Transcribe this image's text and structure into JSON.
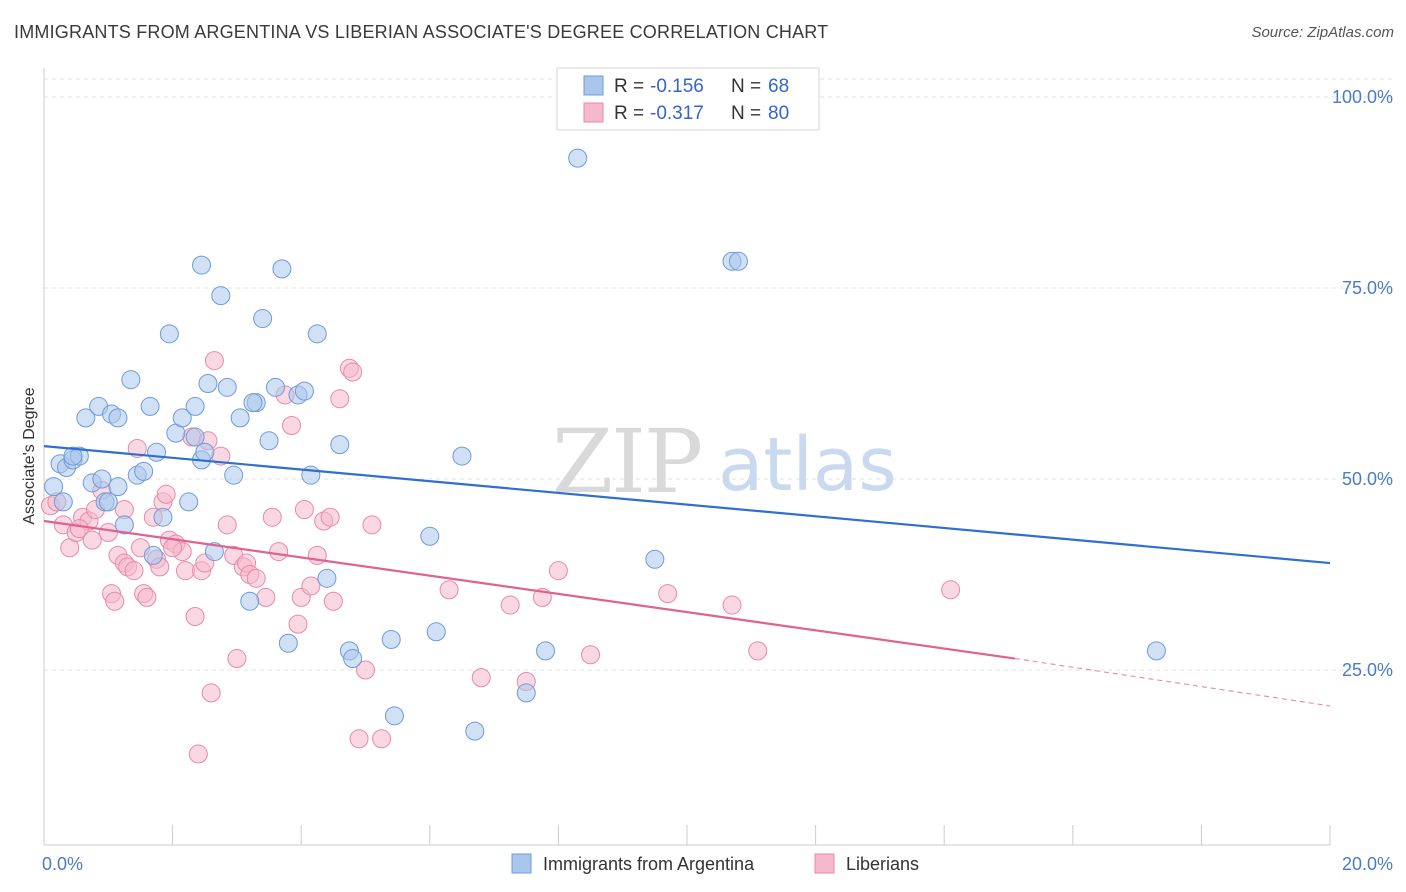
{
  "header": {
    "title": "IMMIGRANTS FROM ARGENTINA VS LIBERIAN ASSOCIATE'S DEGREE CORRELATION CHART",
    "source": "Source: ZipAtlas.com"
  },
  "colors": {
    "blue_fill": "#a9c6ec",
    "blue_stroke": "#6f9bd8",
    "blue_line": "#2f6fcf",
    "pink_fill": "#f6b8cc",
    "pink_stroke": "#e88aa8",
    "pink_line": "#e0628f",
    "tick_text": "#4a7cc4",
    "grid": "#e2e2e2"
  },
  "legend": {
    "blue": {
      "r_label": "R =",
      "r_value": "-0.156",
      "n_label": "N =",
      "n_value": "68"
    },
    "pink": {
      "r_label": "R =",
      "r_value": "-0.317",
      "n_label": "N =",
      "n_value": "80"
    }
  },
  "watermark": {
    "zip": "ZIP",
    "atlas": "atlas"
  },
  "chart_data": {
    "type": "scatter",
    "title": "IMMIGRANTS FROM ARGENTINA VS LIBERIAN ASSOCIATE'S DEGREE CORRELATION CHART",
    "xlabel": "",
    "ylabel": "Associate's Degree",
    "xlim": [
      0,
      20
    ],
    "ylim": [
      5,
      105
    ],
    "x_ticks": [
      {
        "value": 0,
        "label": "0.0%"
      },
      {
        "value": 20,
        "label": "20.0%"
      }
    ],
    "y_ticks": [
      {
        "value": 25,
        "label": "25.0%"
      },
      {
        "value": 50,
        "label": "50.0%"
      },
      {
        "value": 75,
        "label": "75.0%"
      },
      {
        "value": 100,
        "label": "100.0%"
      }
    ],
    "grid": true,
    "legend_position": "top-center",
    "series": [
      {
        "name": "Immigrants from Argentina",
        "color": "#a9c6ec",
        "trend": {
          "x0": 0,
          "y0": 54.3,
          "x1": 20,
          "y1": 39.0
        },
        "points": [
          [
            0.15,
            49
          ],
          [
            0.25,
            52
          ],
          [
            0.35,
            51.5
          ],
          [
            0.45,
            52.5
          ],
          [
            0.55,
            53
          ],
          [
            0.65,
            58
          ],
          [
            0.75,
            49.5
          ],
          [
            0.85,
            59.5
          ],
          [
            0.95,
            47
          ],
          [
            1.05,
            58.5
          ],
          [
            1.15,
            49
          ],
          [
            1.25,
            44
          ],
          [
            1.35,
            63
          ],
          [
            1.45,
            50.5
          ],
          [
            1.55,
            51
          ],
          [
            1.65,
            59.5
          ],
          [
            1.75,
            53.5
          ],
          [
            1.85,
            45
          ],
          [
            1.95,
            69
          ],
          [
            2.05,
            56
          ],
          [
            2.15,
            58
          ],
          [
            2.25,
            47
          ],
          [
            2.35,
            59.5
          ],
          [
            2.45,
            52.5
          ],
          [
            2.55,
            62.5
          ],
          [
            2.65,
            40.5
          ],
          [
            2.75,
            74
          ],
          [
            2.85,
            62
          ],
          [
            2.95,
            50.5
          ],
          [
            3.05,
            58
          ],
          [
            3.2,
            34
          ],
          [
            3.3,
            60
          ],
          [
            3.4,
            71
          ],
          [
            3.5,
            55
          ],
          [
            3.6,
            62
          ],
          [
            3.7,
            77.5
          ],
          [
            3.8,
            28.5
          ],
          [
            3.95,
            61
          ],
          [
            4.05,
            61.5
          ],
          [
            4.15,
            50.5
          ],
          [
            4.25,
            69
          ],
          [
            4.4,
            37
          ],
          [
            4.6,
            54.5
          ],
          [
            4.75,
            27.5
          ],
          [
            4.8,
            26.5
          ],
          [
            5.4,
            29
          ],
          [
            5.45,
            19
          ],
          [
            6.0,
            42.5
          ],
          [
            6.1,
            30
          ],
          [
            6.5,
            53
          ],
          [
            6.7,
            17
          ],
          [
            7.5,
            22
          ],
          [
            7.8,
            27.5
          ],
          [
            8.3,
            92
          ],
          [
            9.5,
            39.5
          ],
          [
            10.7,
            78.5
          ],
          [
            10.8,
            78.5
          ],
          [
            17.3,
            27.5
          ],
          [
            2.45,
            78
          ],
          [
            0.45,
            53
          ],
          [
            1.0,
            47
          ],
          [
            2.35,
            55.5
          ],
          [
            2.5,
            53.5
          ],
          [
            0.3,
            47
          ],
          [
            1.7,
            40
          ],
          [
            0.9,
            50
          ],
          [
            3.25,
            60
          ],
          [
            1.15,
            58
          ]
        ]
      },
      {
        "name": "Liberians",
        "color": "#f6b8cc",
        "trend": {
          "x0": 0,
          "y0": 44.5,
          "x1": 15.1,
          "y1": 26.5
        },
        "trend_dashed_to": {
          "x": 20,
          "y": 20.3
        },
        "points": [
          [
            0.1,
            46.5
          ],
          [
            0.2,
            47
          ],
          [
            0.3,
            44
          ],
          [
            0.4,
            41
          ],
          [
            0.5,
            43
          ],
          [
            0.6,
            45
          ],
          [
            0.7,
            44.5
          ],
          [
            0.8,
            46
          ],
          [
            0.9,
            48.5
          ],
          [
            1.0,
            43
          ],
          [
            1.05,
            35
          ],
          [
            1.1,
            34
          ],
          [
            1.15,
            40
          ],
          [
            1.25,
            39
          ],
          [
            1.3,
            38.5
          ],
          [
            1.4,
            38
          ],
          [
            1.45,
            54
          ],
          [
            1.5,
            41
          ],
          [
            1.55,
            35
          ],
          [
            1.6,
            34.5
          ],
          [
            1.7,
            45
          ],
          [
            1.75,
            39.5
          ],
          [
            1.8,
            38.5
          ],
          [
            1.85,
            47
          ],
          [
            1.95,
            42
          ],
          [
            2.05,
            41.5
          ],
          [
            2.15,
            40.5
          ],
          [
            2.2,
            38
          ],
          [
            2.3,
            55.5
          ],
          [
            2.35,
            32
          ],
          [
            2.45,
            38
          ],
          [
            2.5,
            39
          ],
          [
            2.55,
            55
          ],
          [
            2.6,
            22
          ],
          [
            2.65,
            65.5
          ],
          [
            2.75,
            53
          ],
          [
            2.85,
            44
          ],
          [
            2.95,
            40
          ],
          [
            3.0,
            26.5
          ],
          [
            3.1,
            38.5
          ],
          [
            3.15,
            39
          ],
          [
            3.2,
            37.5
          ],
          [
            3.3,
            37
          ],
          [
            3.45,
            34.5
          ],
          [
            3.55,
            45
          ],
          [
            3.65,
            40.5
          ],
          [
            3.75,
            61
          ],
          [
            3.85,
            57
          ],
          [
            3.95,
            31
          ],
          [
            4.0,
            34.5
          ],
          [
            4.05,
            46
          ],
          [
            4.15,
            36
          ],
          [
            4.25,
            40
          ],
          [
            4.35,
            44.5
          ],
          [
            4.45,
            45
          ],
          [
            4.5,
            34
          ],
          [
            4.6,
            60.5
          ],
          [
            4.75,
            64.5
          ],
          [
            4.8,
            64
          ],
          [
            4.9,
            16
          ],
          [
            5.0,
            25
          ],
          [
            5.1,
            44
          ],
          [
            5.25,
            16
          ],
          [
            6.3,
            35.5
          ],
          [
            6.8,
            24
          ],
          [
            7.25,
            33.5
          ],
          [
            7.5,
            23.5
          ],
          [
            7.75,
            34.5
          ],
          [
            8.0,
            38
          ],
          [
            8.5,
            27
          ],
          [
            9.7,
            35
          ],
          [
            10.7,
            33.5
          ],
          [
            11.1,
            27.5
          ],
          [
            14.1,
            35.5
          ],
          [
            2.4,
            14
          ],
          [
            1.9,
            48
          ],
          [
            0.55,
            43.5
          ],
          [
            0.75,
            42
          ],
          [
            1.25,
            46
          ],
          [
            2.0,
            41
          ]
        ]
      }
    ]
  },
  "bottom_legend": [
    {
      "label": "Immigrants from Argentina"
    },
    {
      "label": "Liberians"
    }
  ]
}
